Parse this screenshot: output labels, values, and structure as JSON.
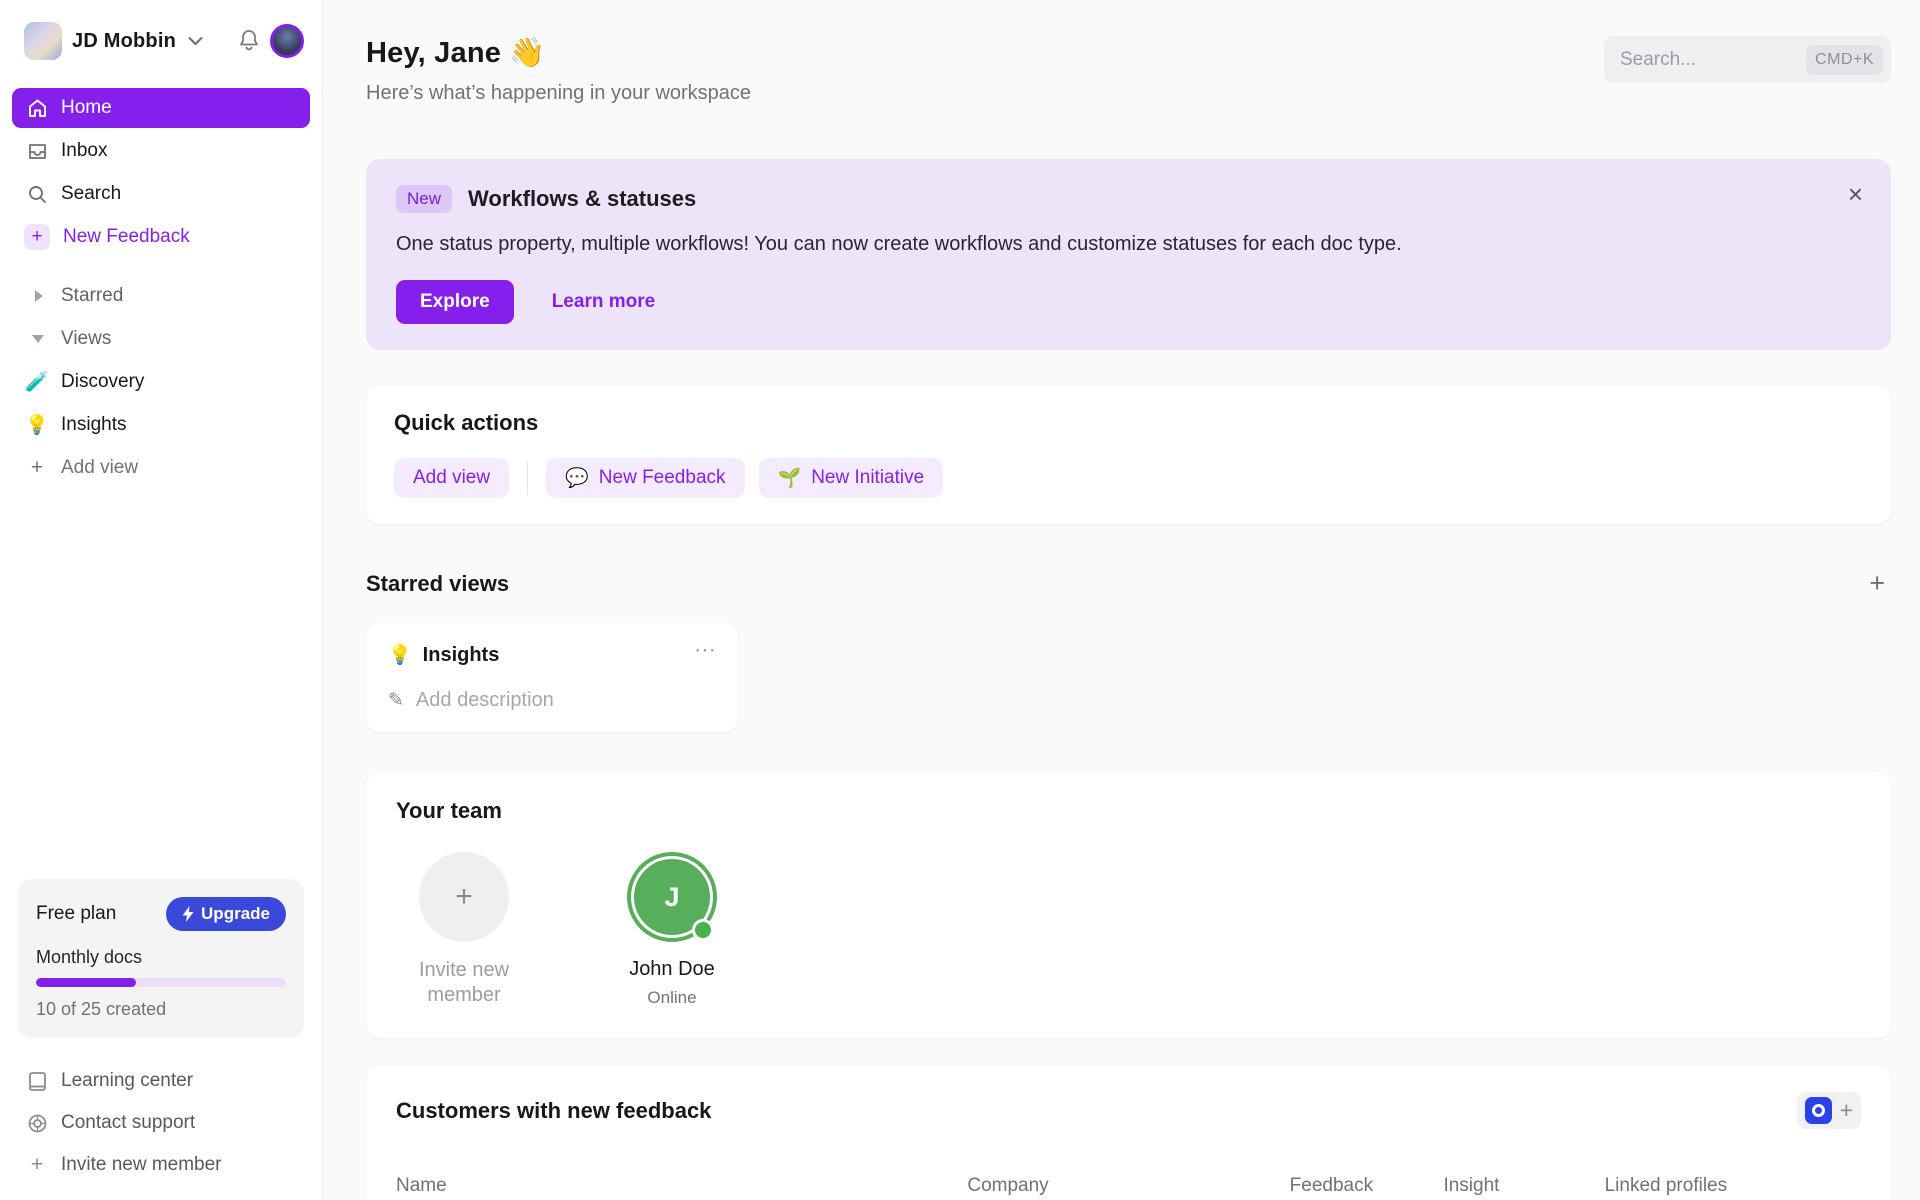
{
  "colors": {
    "accent_purple": "#8520EC",
    "upgrade_blue": "#3B49DA",
    "banner_bg": "#EDE4FA",
    "member_green": "#57AE5B"
  },
  "icons": {
    "close": "×",
    "ellipsis": "⋯",
    "pencil": "✎",
    "plus": "+"
  },
  "sidebar": {
    "workspace": {
      "name": "JD Mobbin"
    },
    "nav": [
      {
        "label": "Home"
      },
      {
        "label": "Inbox"
      },
      {
        "label": "Search"
      },
      {
        "label": "New Feedback"
      }
    ],
    "tree": [
      {
        "label": "Starred"
      },
      {
        "label": "Views"
      }
    ],
    "views": [
      {
        "icon": "🧪",
        "label": "Discovery"
      },
      {
        "icon": "💡",
        "label": "Insights"
      }
    ],
    "add_view_label": "Add view",
    "plan": {
      "name": "Free plan",
      "upgrade_label": "Upgrade",
      "usage_label": "Monthly docs",
      "usage_text": "10 of 25 created",
      "progress_percent": 40
    },
    "footer": [
      {
        "label": "Learning center"
      },
      {
        "label": "Contact support"
      },
      {
        "label": "Invite new member"
      }
    ]
  },
  "header": {
    "greeting": "Hey, Jane 👋",
    "subtitle": "Here’s what’s happening in your workspace",
    "search_placeholder": "Search...",
    "search_shortcut": "CMD+K"
  },
  "banner": {
    "badge": "New",
    "title": "Workflows & statuses",
    "description": "One status property, multiple workflows! You can now create workflows and customize statuses for each doc type.",
    "explore_label": "Explore",
    "learn_more_label": "Learn more"
  },
  "quick_actions": {
    "title": "Quick actions",
    "buttons": [
      {
        "icon": "",
        "label": "Add view"
      },
      {
        "icon": "💬",
        "label": "New Feedback"
      },
      {
        "icon": "🌱",
        "label": "New Initiative"
      }
    ]
  },
  "starred_views": {
    "title": "Starred views",
    "card": {
      "icon": "💡",
      "title": "Insights",
      "description_placeholder": "Add description"
    }
  },
  "team": {
    "title": "Your team",
    "invite_label": "Invite new member",
    "member": {
      "initial": "J",
      "name": "John Doe",
      "status": "Online"
    }
  },
  "customers": {
    "title": "Customers with new feedback",
    "columns": [
      "Name",
      "Company",
      "Feedback",
      "Insight",
      "Linked profiles"
    ]
  }
}
